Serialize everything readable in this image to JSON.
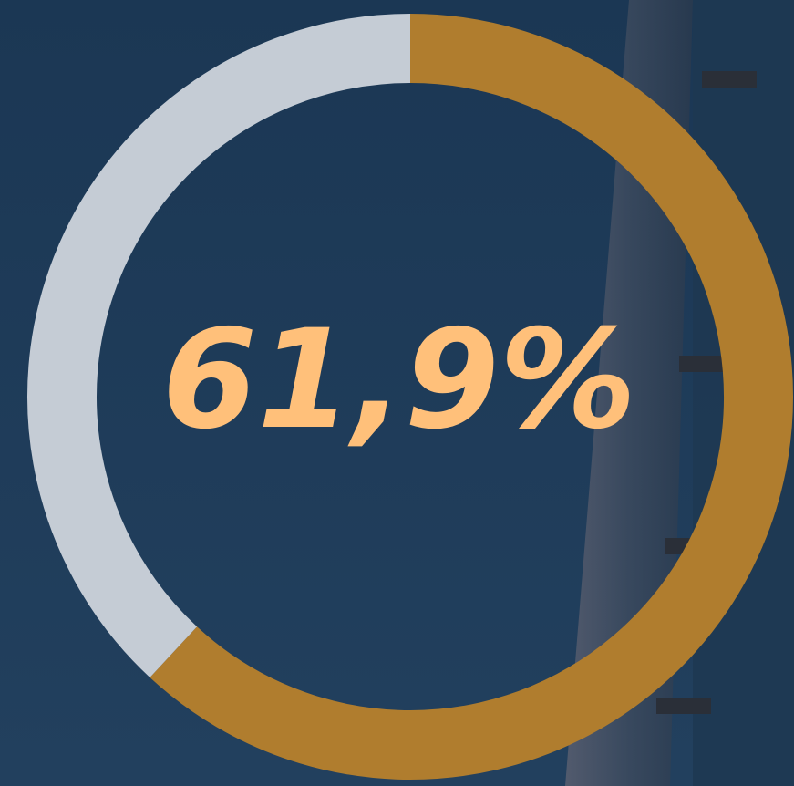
{
  "chart_data": {
    "type": "donut",
    "values": [
      61.9,
      38.1
    ],
    "value_labels": [
      "61,9%",
      null
    ],
    "colors": [
      "#b07d2e",
      "#c5ccd5"
    ]
  }
}
